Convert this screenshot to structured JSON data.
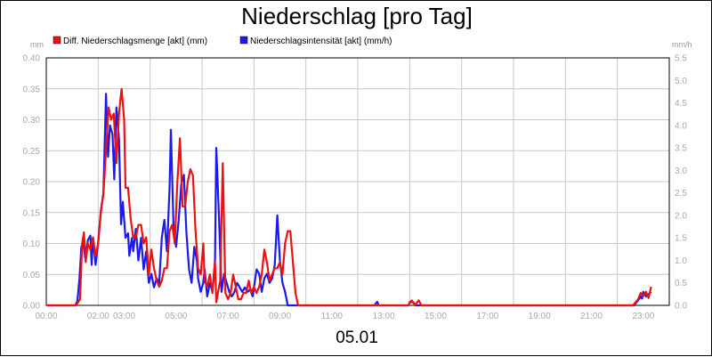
{
  "chart_data": {
    "type": "line",
    "title": "Niederschlag [pro Tag]",
    "date_label": "05.01",
    "left_unit": "mm",
    "right_unit": "mm/h",
    "ylim_left": [
      0,
      0.4
    ],
    "ylim_right": [
      0,
      5.5
    ],
    "xlim_hours": [
      0,
      24
    ],
    "left_ticks": [
      "0.00",
      "0.05",
      "0.10",
      "0.15",
      "0.20",
      "0.25",
      "0.30",
      "0.35",
      "0.40"
    ],
    "right_ticks": [
      "0.0",
      "0.5",
      "1.0",
      "1.5",
      "2.0",
      "2.5",
      "3.0",
      "3.5",
      "4.0",
      "4.5",
      "5.0",
      "5.5"
    ],
    "x_ticks": [
      {
        "t": 0,
        "label": "00:00"
      },
      {
        "t": 2,
        "label": "02:00"
      },
      {
        "t": 3,
        "label": "03:00"
      },
      {
        "t": 5,
        "label": "05:00"
      },
      {
        "t": 7,
        "label": "07:00"
      },
      {
        "t": 9,
        "label": "09:00"
      },
      {
        "t": 11,
        "label": "11:00"
      },
      {
        "t": 13,
        "label": "13:00"
      },
      {
        "t": 15,
        "label": "15:00"
      },
      {
        "t": 17,
        "label": "17:00"
      },
      {
        "t": 19,
        "label": "19:00"
      },
      {
        "t": 21,
        "label": "21:00"
      },
      {
        "t": 23,
        "label": "23:00"
      }
    ],
    "grid": true,
    "legend_position": "top-left",
    "series": [
      {
        "name": "Diff. Niederschlagsmenge [akt] (mm)",
        "color": "#ee1111",
        "axis": "left",
        "points": [
          [
            0,
            0
          ],
          [
            1.15,
            0
          ],
          [
            1.3,
            0.01
          ],
          [
            1.38,
            0.1
          ],
          [
            1.45,
            0.118
          ],
          [
            1.52,
            0.07
          ],
          [
            1.6,
            0.1
          ],
          [
            1.7,
            0.09
          ],
          [
            1.8,
            0.11
          ],
          [
            1.9,
            0.08
          ],
          [
            2.0,
            0.1
          ],
          [
            2.1,
            0.15
          ],
          [
            2.2,
            0.18
          ],
          [
            2.3,
            0.25
          ],
          [
            2.4,
            0.32
          ],
          [
            2.5,
            0.3
          ],
          [
            2.6,
            0.31
          ],
          [
            2.7,
            0.23
          ],
          [
            2.8,
            0.31
          ],
          [
            2.9,
            0.35
          ],
          [
            3.0,
            0.3
          ],
          [
            3.05,
            0.19
          ],
          [
            3.15,
            0.19
          ],
          [
            3.25,
            0.14
          ],
          [
            3.35,
            0.11
          ],
          [
            3.45,
            0.11
          ],
          [
            3.55,
            0.13
          ],
          [
            3.65,
            0.13
          ],
          [
            3.75,
            0.1
          ],
          [
            3.85,
            0.11
          ],
          [
            3.95,
            0.05
          ],
          [
            4.05,
            0.09
          ],
          [
            4.15,
            0.06
          ],
          [
            4.25,
            0.04
          ],
          [
            4.35,
            0.03
          ],
          [
            4.45,
            0.04
          ],
          [
            4.55,
            0.06
          ],
          [
            4.65,
            0.06
          ],
          [
            4.75,
            0.12
          ],
          [
            4.85,
            0.13
          ],
          [
            4.95,
            0.1
          ],
          [
            5.05,
            0.2
          ],
          [
            5.15,
            0.27
          ],
          [
            5.25,
            0.16
          ],
          [
            5.35,
            0.16
          ],
          [
            5.45,
            0.2
          ],
          [
            5.55,
            0.22
          ],
          [
            5.65,
            0.21
          ],
          [
            5.75,
            0.12
          ],
          [
            5.85,
            0.06
          ],
          [
            5.95,
            0.05
          ],
          [
            6.05,
            0.1
          ],
          [
            6.1,
            0.04
          ],
          [
            6.2,
            0.03
          ],
          [
            6.3,
            0.05
          ],
          [
            6.4,
            0.02
          ],
          [
            6.5,
            0.07
          ],
          [
            6.55,
            0.005
          ],
          [
            6.7,
            0.04
          ],
          [
            6.8,
            0.23
          ],
          [
            6.9,
            0.02
          ],
          [
            7.0,
            0.01
          ],
          [
            7.1,
            0.02
          ],
          [
            7.2,
            0.05
          ],
          [
            7.3,
            0.03
          ],
          [
            7.4,
            0.01
          ],
          [
            7.5,
            0.01
          ],
          [
            7.6,
            0.02
          ],
          [
            7.7,
            0.02
          ],
          [
            7.8,
            0.04
          ],
          [
            7.9,
            0.02
          ],
          [
            8.0,
            0.03
          ],
          [
            8.1,
            0.02
          ],
          [
            8.2,
            0.03
          ],
          [
            8.3,
            0.05
          ],
          [
            8.4,
            0.09
          ],
          [
            8.5,
            0.07
          ],
          [
            8.6,
            0.04
          ],
          [
            8.7,
            0.05
          ],
          [
            8.8,
            0.06
          ],
          [
            8.9,
            0.06
          ],
          [
            9.0,
            0.07
          ],
          [
            9.1,
            0.05
          ],
          [
            9.2,
            0.1
          ],
          [
            9.3,
            0.12
          ],
          [
            9.4,
            0.12
          ],
          [
            9.5,
            0.07
          ],
          [
            9.6,
            0.02
          ],
          [
            9.7,
            0.0
          ],
          [
            13.95,
            0
          ],
          [
            14.0,
            0.005
          ],
          [
            14.08,
            0.008
          ],
          [
            14.15,
            0.004
          ],
          [
            14.2,
            0
          ],
          [
            14.35,
            0.008
          ],
          [
            14.45,
            0
          ],
          [
            22.6,
            0
          ],
          [
            22.8,
            0.01
          ],
          [
            22.9,
            0.02
          ],
          [
            23.0,
            0.015
          ],
          [
            23.1,
            0.022
          ],
          [
            23.2,
            0.012
          ],
          [
            23.3,
            0.03
          ]
        ]
      },
      {
        "name": "Niederschlagsintensität [akt] (mm/h)",
        "color": "#1a1aee",
        "axis": "right",
        "points": [
          [
            0,
            0
          ],
          [
            1.12,
            0
          ],
          [
            1.2,
            0.1
          ],
          [
            1.28,
            0.6
          ],
          [
            1.35,
            1.3
          ],
          [
            1.42,
            1.4
          ],
          [
            1.5,
            1.05
          ],
          [
            1.6,
            1.45
          ],
          [
            1.7,
            1.55
          ],
          [
            1.75,
            0.9
          ],
          [
            1.8,
            1.5
          ],
          [
            1.9,
            0.9
          ],
          [
            2.0,
            1.4
          ],
          [
            2.1,
            2.1
          ],
          [
            2.2,
            2.5
          ],
          [
            2.3,
            4.7
          ],
          [
            2.38,
            3.3
          ],
          [
            2.45,
            4.0
          ],
          [
            2.55,
            3.8
          ],
          [
            2.62,
            2.8
          ],
          [
            2.7,
            4.4
          ],
          [
            2.8,
            3.7
          ],
          [
            2.88,
            1.8
          ],
          [
            2.95,
            2.3
          ],
          [
            3.05,
            1.5
          ],
          [
            3.15,
            1.6
          ],
          [
            3.2,
            1.1
          ],
          [
            3.3,
            1.5
          ],
          [
            3.35,
            1.2
          ],
          [
            3.45,
            1.7
          ],
          [
            3.55,
            1.0
          ],
          [
            3.65,
            1.5
          ],
          [
            3.75,
            0.8
          ],
          [
            3.85,
            1.2
          ],
          [
            3.95,
            0.5
          ],
          [
            4.05,
            0.7
          ],
          [
            4.15,
            0.4
          ],
          [
            4.25,
            0.6
          ],
          [
            4.35,
            0.5
          ],
          [
            4.45,
            1.5
          ],
          [
            4.55,
            1.9
          ],
          [
            4.65,
            1.2
          ],
          [
            4.75,
            2.6
          ],
          [
            4.8,
            3.9
          ],
          [
            4.9,
            1.8
          ],
          [
            5.0,
            1.3
          ],
          [
            5.1,
            1.9
          ],
          [
            5.2,
            2.7
          ],
          [
            5.3,
            2.9
          ],
          [
            5.4,
            1.6
          ],
          [
            5.5,
            0.8
          ],
          [
            5.6,
            0.5
          ],
          [
            5.7,
            1.3
          ],
          [
            5.8,
            1.0
          ],
          [
            5.85,
            0.6
          ],
          [
            5.95,
            0.3
          ],
          [
            6.05,
            0.5
          ],
          [
            6.1,
            0.8
          ],
          [
            6.2,
            0.2
          ],
          [
            6.3,
            0.5
          ],
          [
            6.4,
            0.3
          ],
          [
            6.5,
            1.0
          ],
          [
            6.55,
            3.5
          ],
          [
            6.65,
            2.0
          ],
          [
            6.75,
            0.3
          ],
          [
            6.85,
            0.7
          ],
          [
            6.95,
            0.5
          ],
          [
            7.05,
            0.3
          ],
          [
            7.15,
            0.2
          ],
          [
            7.25,
            0.3
          ],
          [
            7.35,
            0.5
          ],
          [
            7.45,
            0.4
          ],
          [
            7.55,
            0.3
          ],
          [
            7.65,
            0.4
          ],
          [
            7.75,
            0.3
          ],
          [
            7.85,
            0.35
          ],
          [
            7.95,
            0.2
          ],
          [
            8.1,
            0.8
          ],
          [
            8.2,
            0.7
          ],
          [
            8.3,
            0.3
          ],
          [
            8.4,
            0.6
          ],
          [
            8.5,
            0.7
          ],
          [
            8.6,
            0.5
          ],
          [
            8.7,
            0.6
          ],
          [
            8.8,
            0.9
          ],
          [
            8.9,
            2.0
          ],
          [
            9.0,
            1.0
          ],
          [
            9.1,
            0.5
          ],
          [
            9.2,
            0.3
          ],
          [
            9.3,
            0.0
          ],
          [
            12.65,
            0
          ],
          [
            12.7,
            0.05
          ],
          [
            12.75,
            0.08
          ],
          [
            12.8,
            0
          ],
          [
            13.95,
            0
          ],
          [
            14.0,
            0.06
          ],
          [
            14.1,
            0.08
          ],
          [
            14.18,
            0.04
          ],
          [
            14.22,
            0
          ],
          [
            22.65,
            0
          ],
          [
            22.75,
            0.08
          ],
          [
            22.85,
            0.15
          ],
          [
            22.9,
            0.2
          ],
          [
            22.95,
            0.15
          ],
          [
            23.0,
            0.3
          ],
          [
            23.1,
            0.2
          ],
          [
            23.2,
            0.25
          ],
          [
            23.3,
            0.3
          ]
        ]
      }
    ]
  }
}
